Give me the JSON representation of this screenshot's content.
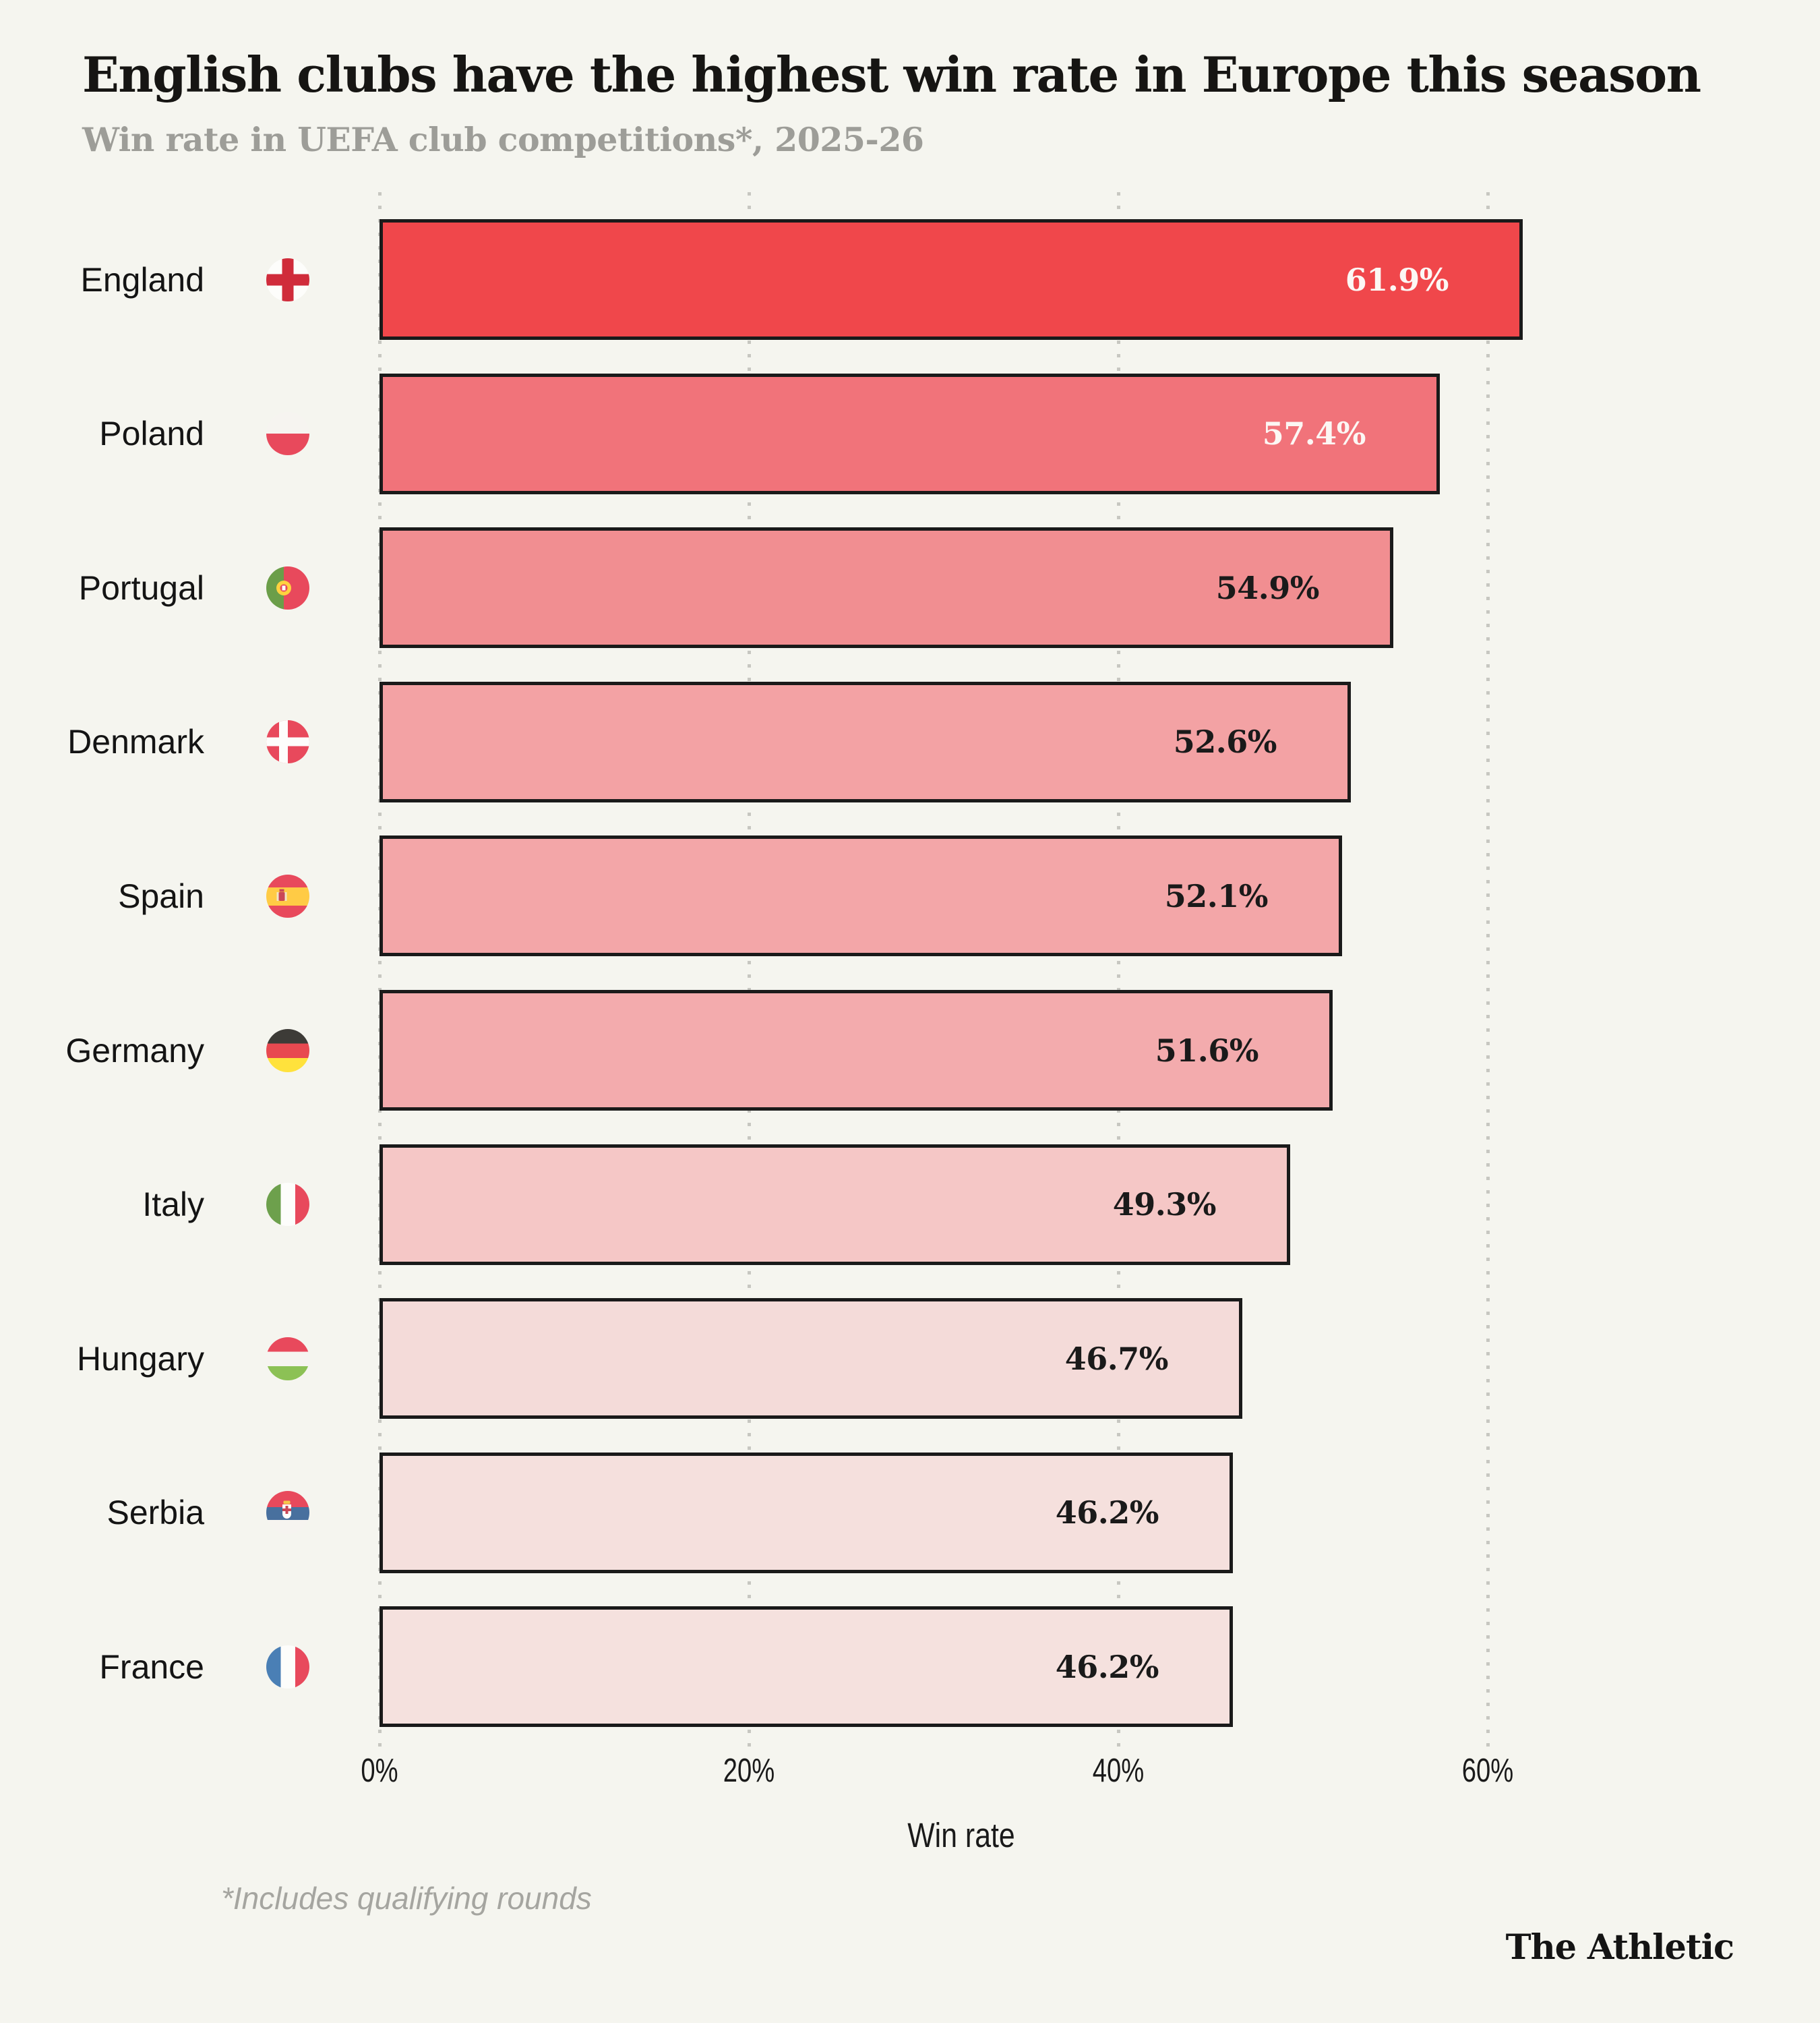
{
  "footnote": "*Includes qualifying rounds",
  "branding": "The Athletic",
  "colors": {
    "background": "#F5F5EF",
    "bar_border": "#1A1A1A",
    "gridline": "#C7C7C1",
    "title_text": "#161513",
    "subtitle_text": "#9D9D98",
    "footnote_text": "#A5A5A0"
  },
  "chart_data": {
    "type": "bar",
    "orientation": "horizontal",
    "title": "English clubs have the highest win rate in Europe this season",
    "subtitle": "Win rate in UEFA club competitions*, 2025-26",
    "xlabel": "Win rate",
    "xlim": [
      0,
      63
    ],
    "x_ticks": [
      "0%",
      "20%",
      "40%",
      "60%"
    ],
    "x_tick_values": [
      0,
      20,
      40,
      60
    ],
    "grid": "dotted-vertical",
    "legend": "none",
    "categories": [
      "England",
      "Poland",
      "Portugal",
      "Denmark",
      "Spain",
      "Germany",
      "Italy",
      "Hungary",
      "Serbia",
      "France"
    ],
    "values": [
      61.9,
      57.4,
      54.9,
      52.6,
      52.1,
      51.6,
      49.3,
      46.7,
      46.2,
      46.2
    ],
    "value_labels": [
      "61.9%",
      "57.4%",
      "54.9%",
      "52.6%",
      "52.1%",
      "51.6%",
      "49.3%",
      "46.7%",
      "46.2%",
      "46.2%"
    ],
    "bar_colors": [
      "#F0474B",
      "#F1737A",
      "#F18E91",
      "#F3A2A4",
      "#F3A6A8",
      "#F3ABAD",
      "#F5C7C6",
      "#F4DBD9",
      "#F5E0DD",
      "#F5E1DE"
    ],
    "value_label_colors": [
      "#FCF7F4",
      "#FCF7F4",
      "#1A1A1A",
      "#1A1A1A",
      "#1A1A1A",
      "#1A1A1A",
      "#1A1A1A",
      "#1A1A1A",
      "#1A1A1A",
      "#1A1A1A"
    ],
    "flags": [
      "england-flag-icon",
      "poland-flag-icon",
      "portugal-flag-icon",
      "denmark-flag-icon",
      "spain-flag-icon",
      "germany-flag-icon",
      "italy-flag-icon",
      "hungary-flag-icon",
      "serbia-flag-icon",
      "france-flag-icon"
    ]
  }
}
